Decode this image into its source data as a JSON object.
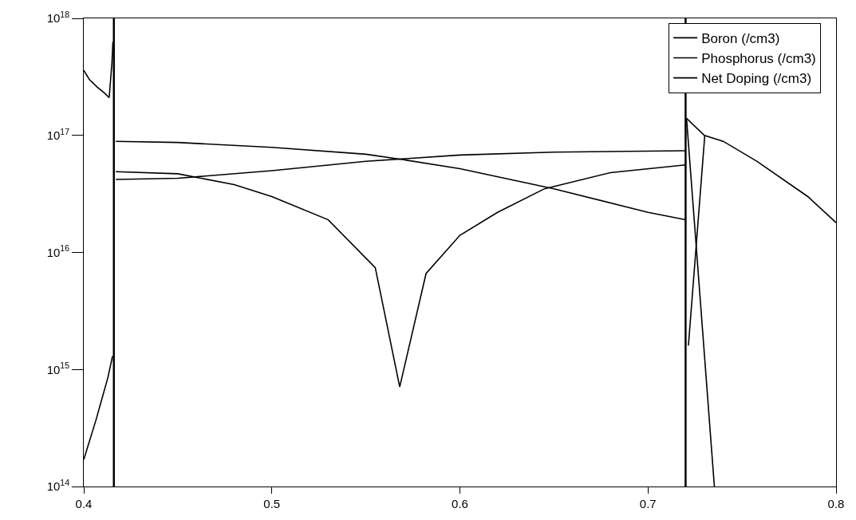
{
  "chart_data": {
    "type": "line",
    "log": "y",
    "legend": "top right",
    "xlim": [
      0.4,
      0.8
    ],
    "xticks": [
      {
        "value": 0.4,
        "label": "0.4"
      },
      {
        "value": 0.5,
        "label": "0.5"
      },
      {
        "value": 0.6,
        "label": "0.6"
      },
      {
        "value": 0.7,
        "label": "0.7"
      },
      {
        "value": 0.8,
        "label": "0.8"
      }
    ],
    "ylim": [
      100000000000000.0,
      1e+18
    ],
    "yticks": [
      {
        "value": 100000000000000.0,
        "label": "10$^{14}$"
      },
      {
        "value": 1000000000000000.0,
        "label": "10$^{15}$"
      },
      {
        "value": 1e+16,
        "label": "10$^{16}$"
      },
      {
        "value": 1e+17,
        "label": "10$^{17}$"
      },
      {
        "value": 1e+18,
        "label": "10$^{18}$"
      }
    ],
    "ref_lines": [
      {
        "axis": "x",
        "value": 0.416,
        "color": "#000000"
      },
      {
        "axis": "x",
        "value": 0.72,
        "color": "#000000"
      }
    ],
    "series": [
      {
        "name": "Boron (/cm3)",
        "color": "#000000",
        "x": [
          0.4,
          0.403,
          0.407,
          0.411,
          0.4135,
          0.415,
          0.4155,
          0.4156,
          0.417,
          0.45,
          0.5,
          0.55,
          0.57,
          0.6,
          0.65,
          0.7,
          0.72,
          0.7201,
          0.7205,
          0.73,
          0.74,
          0.758,
          0.785,
          0.8
        ],
        "values": [
          3.6e+17,
          3e+17,
          2.6e+17,
          2.3e+17,
          2.1e+17,
          4.2e+17,
          6.3e+17,
          null,
          8.9e+16,
          8.7e+16,
          7.9e+16,
          6.9e+16,
          6.2e+16,
          5.2e+16,
          3.5e+16,
          2.2e+16,
          1.9e+16,
          null,
          1.4e+17,
          1e+17,
          8.9e+16,
          6e+16,
          3e+16,
          1.8e+16
        ]
      },
      {
        "name": "Phosphorus (/cm3)",
        "color": "#000000",
        "x": [
          0.4,
          0.4065,
          0.4128,
          0.4153,
          0.416,
          0.417,
          0.45,
          0.5,
          0.55,
          0.6,
          0.65,
          0.72,
          0.7201,
          0.7215,
          0.7302
        ],
        "values": [
          170000000000000.0,
          370000000000000.0,
          850000000000000.0,
          1300000000000000.0,
          null,
          4.2e+16,
          4.3e+16,
          5e+16,
          6e+16,
          6.8e+16,
          7.2e+16,
          7.4e+16,
          null,
          1600000000000000.0,
          1e+17
        ]
      },
      {
        "name": "Net Doping (/cm3)",
        "color": "#000000",
        "x": [
          0.417,
          0.45,
          0.48,
          0.5,
          0.53,
          0.555,
          0.568,
          0.582,
          0.6,
          0.62,
          0.645,
          0.68,
          0.72,
          0.7201,
          0.7205,
          0.7353
        ],
        "values": [
          4.9e+16,
          4.7e+16,
          3.8e+16,
          3e+16,
          1.9e+16,
          7400000000000000.0,
          710000000000000.0,
          6600000000000000.0,
          1.4e+16,
          2.2e+16,
          3.5e+16,
          4.8e+16,
          5.6e+16,
          null,
          1.4e+17,
          100000000000000.0
        ]
      }
    ]
  }
}
